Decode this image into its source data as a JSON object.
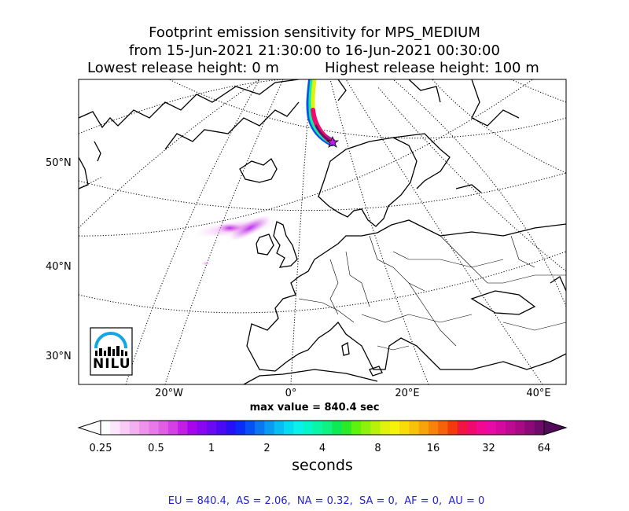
{
  "title": {
    "line1": "Footprint emission sensitivity for MPS_MEDIUM",
    "line2": "from 15-Jun-2021 21:30:00 to 16-Jun-2021 00:30:00",
    "line3_left": "Lowest release height: 0 m",
    "line3_right": "Highest release height: 100 m"
  },
  "map": {
    "lat_labels": [
      "50°N",
      "40°N",
      "30°N"
    ],
    "lon_labels": [
      "20°W",
      "0°",
      "20°E",
      "40°E"
    ],
    "release_marker": "star-icon",
    "logo_text": "NILU"
  },
  "max_value_text": "max value = 840.4 sec",
  "colorbar": {
    "ticks": [
      "0.25",
      "0.5",
      "1",
      "2",
      "4",
      "8",
      "16",
      "32",
      "64"
    ],
    "label": "seconds",
    "colors": [
      "#ffffff",
      "#fde6fb",
      "#f9ccf6",
      "#f3b0f1",
      "#ee93ec",
      "#e879e8",
      "#e05de5",
      "#d540e6",
      "#c31ee8",
      "#a805ec",
      "#8a06f0",
      "#6c08f2",
      "#4a0af4",
      "#2611f5",
      "#0a2cf6",
      "#0651f3",
      "#0a77f0",
      "#0b9af1",
      "#08bdf3",
      "#06dbf4",
      "#0af0ec",
      "#06f5cb",
      "#0af5a6",
      "#0df280",
      "#0eea55",
      "#2aea2a",
      "#5ef20c",
      "#8cf20a",
      "#b8f20a",
      "#dff40a",
      "#f7f20a",
      "#f7dc0a",
      "#f7c20a",
      "#f7a40a",
      "#f7840a",
      "#f5620a",
      "#f23a0a",
      "#f01640",
      "#f00a6e",
      "#f00a92",
      "#e80aa6",
      "#d40a9e",
      "#be0a92",
      "#a80a86",
      "#8c0a78",
      "#700a6a",
      "#520a5a"
    ]
  },
  "footer_stats": "EU = 840.4,  AS = 2.06,  NA = 0.32,  SA = 0,  AF = 0,  AU = 0"
}
